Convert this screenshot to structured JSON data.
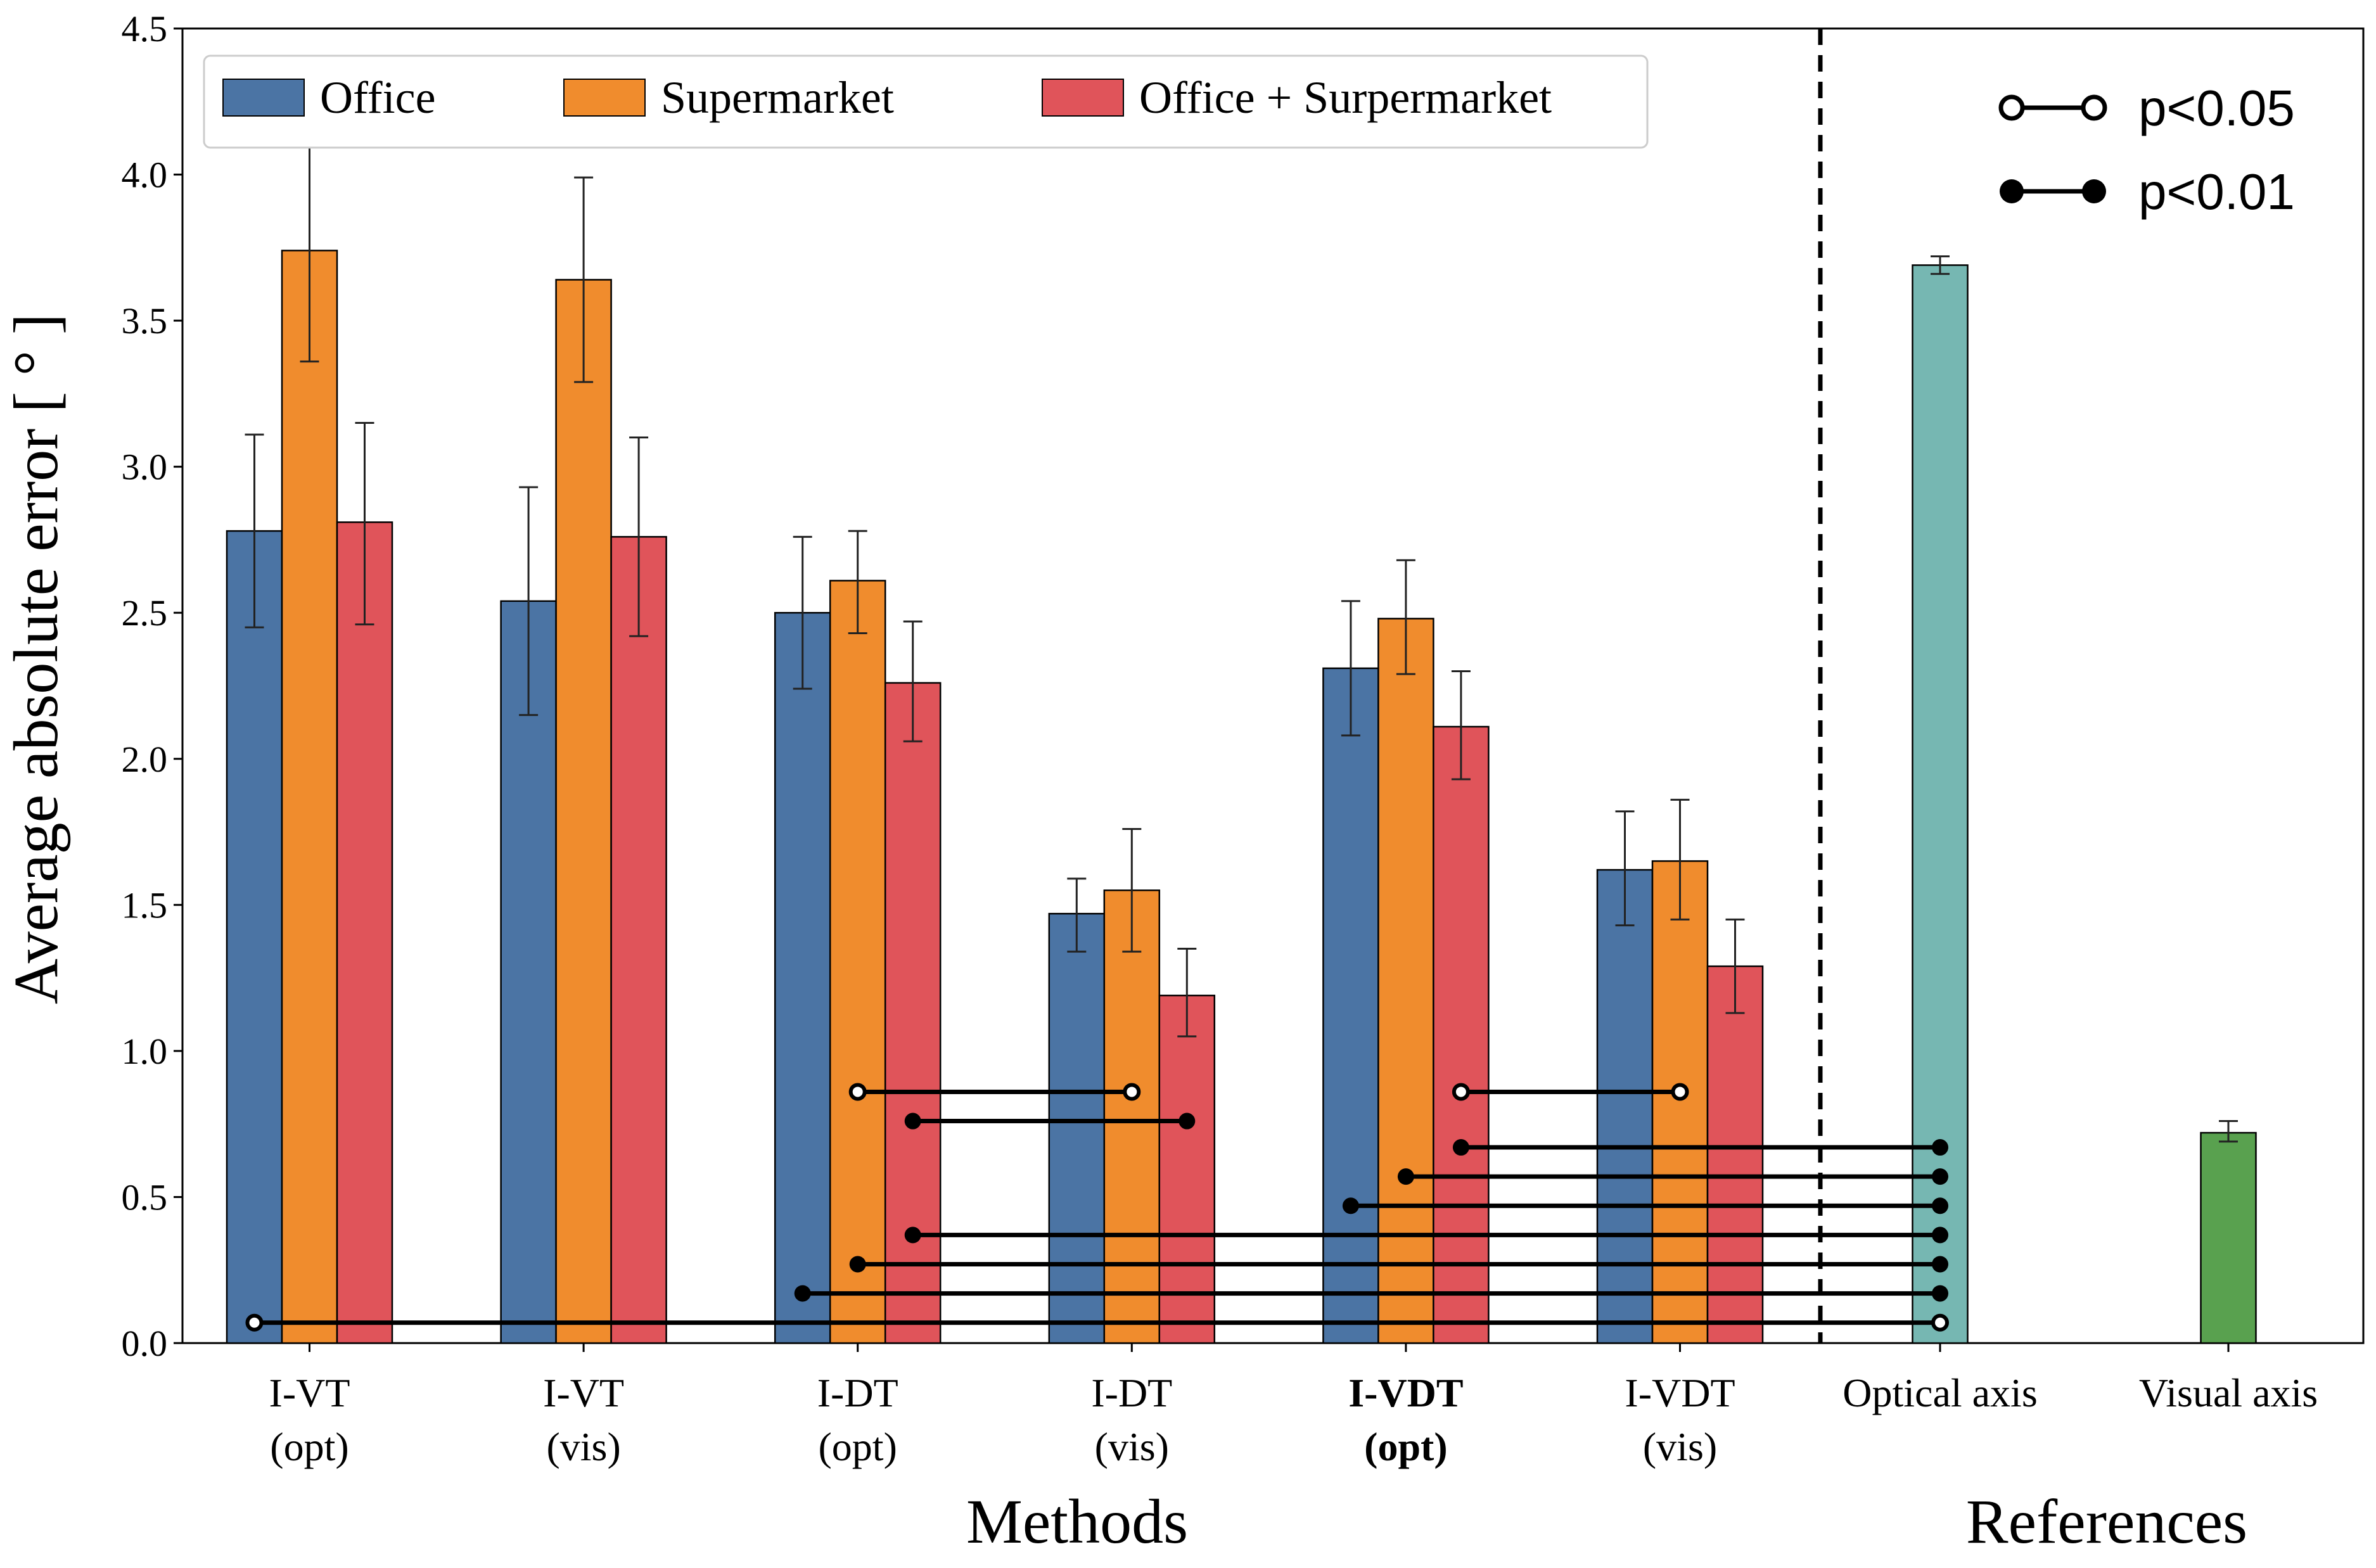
{
  "chart_data": {
    "type": "bar",
    "ylabel": "Average absolute error [ ° ]",
    "ylim": [
      0,
      4.5
    ],
    "yticks": [
      "0.0",
      "0.5",
      "1.0",
      "1.5",
      "2.0",
      "2.5",
      "3.0",
      "3.5",
      "4.0",
      "4.5"
    ],
    "grid": false,
    "legend_position": "top-left",
    "methods_label": "Methods",
    "references_label": "References",
    "categories": [
      {
        "line1": "I-VT",
        "line2": "(opt)",
        "bold": false
      },
      {
        "line1": "I-VT",
        "line2": "(vis)",
        "bold": false
      },
      {
        "line1": "I-DT",
        "line2": "(opt)",
        "bold": false
      },
      {
        "line1": "I-DT",
        "line2": "(vis)",
        "bold": false
      },
      {
        "line1": "I-VDT",
        "line2": "(opt)",
        "bold": true
      },
      {
        "line1": "I-VDT",
        "line2": "(vis)",
        "bold": false
      }
    ],
    "series": [
      {
        "name": "Office",
        "color": "#4b74a4",
        "values": [
          2.78,
          2.54,
          2.5,
          1.47,
          2.31,
          1.62
        ],
        "err_low": [
          2.45,
          2.15,
          2.24,
          1.34,
          2.08,
          1.43
        ],
        "err_high": [
          3.11,
          2.93,
          2.76,
          1.59,
          2.54,
          1.82
        ]
      },
      {
        "name": "Supermarket",
        "color": "#f08c2d",
        "values": [
          3.74,
          3.64,
          2.61,
          1.55,
          2.48,
          1.65
        ],
        "err_low": [
          3.36,
          3.29,
          2.43,
          1.34,
          2.29,
          1.45
        ],
        "err_high": [
          4.13,
          3.99,
          2.78,
          1.76,
          2.68,
          1.86
        ]
      },
      {
        "name": "Office + Surpermarket",
        "color": "#e0545a",
        "values": [
          2.81,
          2.76,
          2.26,
          1.19,
          2.11,
          1.29
        ],
        "err_low": [
          2.46,
          2.42,
          2.06,
          1.05,
          1.93,
          1.13
        ],
        "err_high": [
          3.15,
          3.1,
          2.47,
          1.35,
          2.3,
          1.45
        ]
      }
    ],
    "references": [
      {
        "label": "Optical axis",
        "value": 3.69,
        "err_low": 3.66,
        "err_high": 3.72,
        "color": "#76b7b2"
      },
      {
        "label": "Visual axis",
        "value": 0.72,
        "err_low": 0.69,
        "err_high": 0.76,
        "color": "#59a14f"
      }
    ],
    "significance_legend": [
      {
        "label": "p<0.05",
        "filled": false
      },
      {
        "label": "p<0.01",
        "filled": true
      }
    ],
    "significance": [
      {
        "from_cat": 2,
        "from_series": 1,
        "to_cat": 3,
        "to_series": 1,
        "level": 0.86,
        "filled": false
      },
      {
        "from_cat": 2,
        "from_series": 2,
        "to_cat": 3,
        "to_series": 2,
        "level": 0.76,
        "filled": true
      },
      {
        "from_cat": 4,
        "from_series": 2,
        "to_cat": 5,
        "to_series": 1,
        "level": 0.86,
        "filled": false
      },
      {
        "from_cat": 4,
        "from_series": 2,
        "to_ref": 0,
        "level": 0.67,
        "filled": true
      },
      {
        "from_cat": 4,
        "from_series": 1,
        "to_ref": 0,
        "level": 0.57,
        "filled": true
      },
      {
        "from_cat": 4,
        "from_series": 0,
        "to_ref": 0,
        "level": 0.47,
        "filled": true
      },
      {
        "from_cat": 2,
        "from_series": 2,
        "to_ref": 0,
        "level": 0.37,
        "filled": true
      },
      {
        "from_cat": 2,
        "from_series": 1,
        "to_ref": 0,
        "level": 0.27,
        "filled": true
      },
      {
        "from_cat": 2,
        "from_series": 0,
        "to_ref": 0,
        "level": 0.17,
        "filled": true
      },
      {
        "from_cat": 0,
        "from_series": 0,
        "to_ref": 0,
        "level": 0.07,
        "filled": false
      }
    ]
  }
}
